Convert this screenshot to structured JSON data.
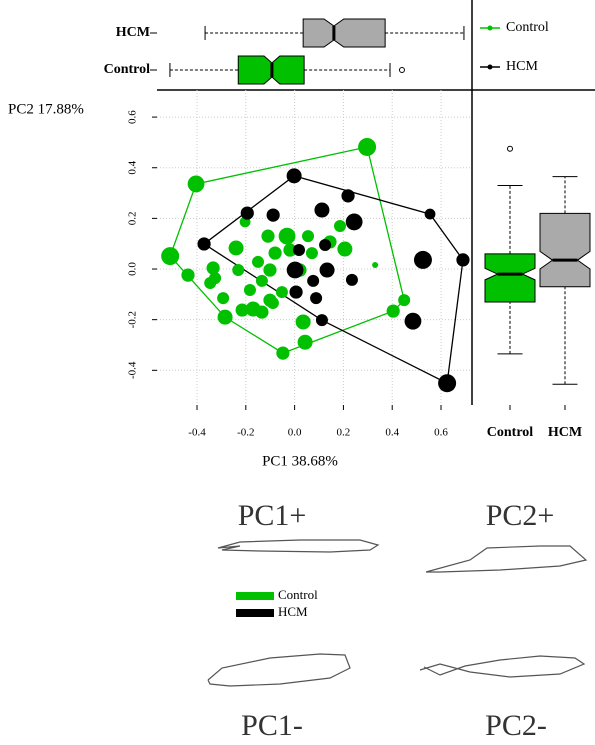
{
  "chart_data": {
    "type": "scatter",
    "x_label": "PC1 38.68%",
    "y_label": "PC2 17.88%",
    "xlim": [
      -0.564,
      0.727
    ],
    "ylim": [
      -0.537,
      0.707
    ],
    "xticks": [
      -0.4,
      -0.2,
      {
        "value": 0,
        "label": "0.0"
      },
      0.2,
      0.4,
      0.6
    ],
    "yticks": [
      -0.4,
      -0.2,
      {
        "value": 0,
        "label": "0.0"
      },
      0.2,
      0.4,
      0.6
    ],
    "grid": true,
    "series": [
      {
        "name": "Control",
        "color": "#00c000",
        "x": [
          0.297,
          -0.404,
          -0.51,
          -0.437,
          -0.203,
          -0.24,
          -0.334,
          -0.346,
          -0.293,
          -0.285,
          -0.215,
          -0.17,
          -0.134,
          -0.101,
          -0.183,
          -0.134,
          -0.101,
          -0.08,
          -0.109,
          -0.031,
          -0.019,
          0.055,
          0.022,
          0.071,
          0.145,
          0.206,
          0.186,
          -0.15,
          -0.052,
          0.035,
          0.043,
          -0.048,
          0.404,
          0.449,
          0.33,
          -0.231,
          -0.326,
          -0.089
        ],
        "y": [
          0.482,
          0.336,
          0.051,
          -0.024,
          0.186,
          0.083,
          0.004,
          -0.055,
          -0.115,
          -0.19,
          -0.162,
          -0.158,
          -0.17,
          -0.123,
          -0.083,
          -0.047,
          -0.004,
          0.063,
          0.13,
          0.13,
          0.075,
          0.13,
          -0.004,
          0.063,
          0.107,
          0.079,
          0.17,
          0.028,
          -0.091,
          -0.209,
          -0.289,
          -0.332,
          -0.166,
          -0.123,
          0.016,
          -0.004,
          -0.036,
          -0.134
        ],
        "sizes": [
          3,
          2.8,
          3,
          2.2,
          1.8,
          2.5,
          2.2,
          2,
          2,
          2.5,
          2.2,
          2.5,
          2.2,
          2.2,
          2,
          2,
          2.2,
          2.2,
          2.2,
          2.8,
          2.2,
          2,
          2.2,
          2,
          2.2,
          2.5,
          2,
          2,
          2,
          2.5,
          2.5,
          2.2,
          2.2,
          2,
          1,
          2,
          2,
          2
        ]
      },
      {
        "name": "HCM",
        "color": "#000000",
        "x": [
          -0.002,
          -0.371,
          -0.194,
          -0.088,
          0.112,
          0.219,
          0.244,
          0.002,
          0.006,
          0.076,
          0.133,
          0.235,
          0.526,
          0.555,
          0.69,
          0.485,
          0.625,
          0.112,
          0.088,
          0.018,
          0.125
        ],
        "y": [
          0.368,
          0.099,
          0.221,
          0.213,
          0.233,
          0.289,
          0.186,
          -0.004,
          -0.091,
          -0.047,
          -0.004,
          -0.043,
          0.036,
          0.217,
          0.036,
          -0.206,
          -0.451,
          -0.202,
          -0.115,
          0.075,
          0.095
        ],
        "sizes": [
          2.5,
          2.2,
          2.2,
          2.2,
          2.5,
          2.2,
          2.8,
          2.8,
          2.2,
          2,
          2.5,
          2,
          3,
          1.8,
          2.2,
          2.8,
          3,
          2,
          2,
          2,
          2
        ]
      }
    ],
    "pc1_boxplot": {
      "categories": [
        "Control",
        "HCM"
      ],
      "colors": [
        "#00c000",
        "#aaaaaa"
      ],
      "min": [
        -0.511,
        -0.367
      ],
      "q1": [
        -0.231,
        0.035
      ],
      "median": [
        -0.093,
        0.161
      ],
      "q3": [
        0.039,
        0.371
      ],
      "max": [
        0.391,
        0.694
      ],
      "outliers": [
        [
          0.44
        ],
        []
      ]
    },
    "pc2_boxplot": {
      "categories": [
        "Control",
        "HCM"
      ],
      "colors": [
        "#00c000",
        "#aaaaaa"
      ],
      "min": [
        -0.335,
        -0.455
      ],
      "q1": [
        -0.13,
        -0.07
      ],
      "median": [
        -0.02,
        0.035
      ],
      "q3": [
        0.06,
        0.22
      ],
      "max": [
        0.33,
        0.365
      ],
      "outliers": [
        [
          0.475
        ],
        []
      ]
    }
  },
  "shape_labels": [
    "PC1+",
    "PC2+",
    "PC1-",
    "PC2-"
  ]
}
